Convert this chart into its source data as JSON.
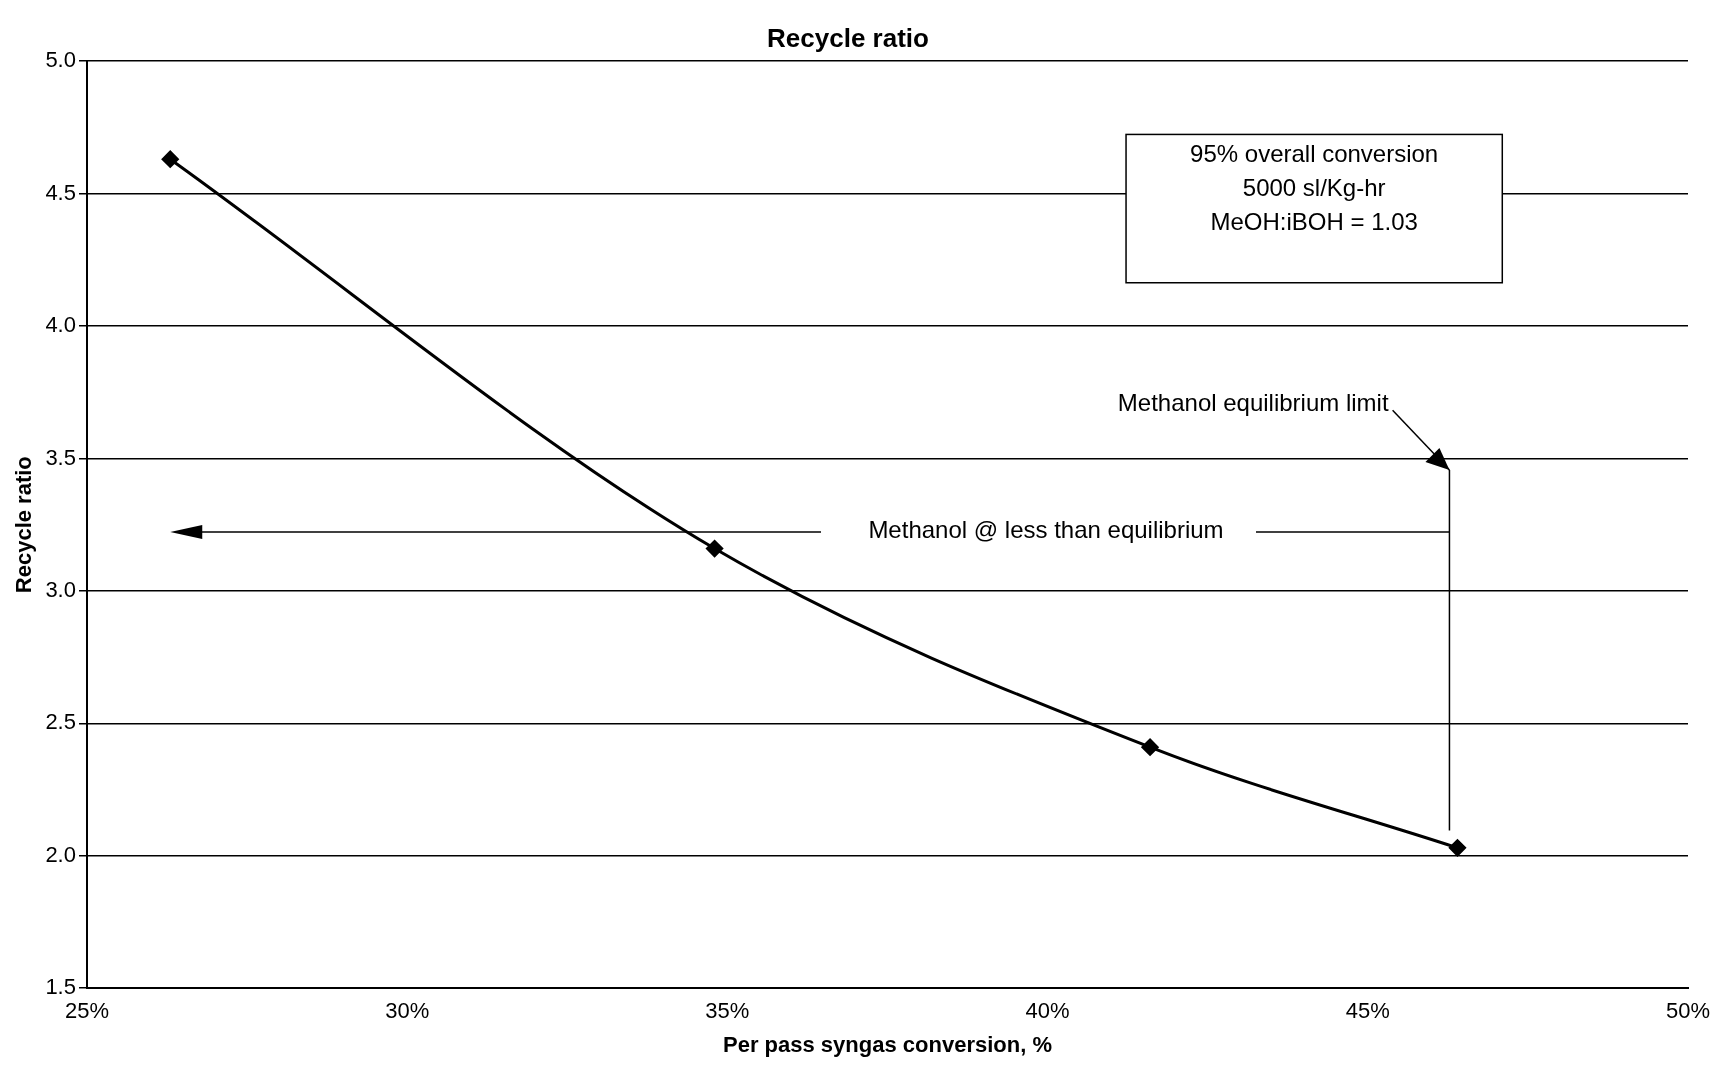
{
  "chart_data": {
    "type": "line",
    "title": "Recycle ratio",
    "xlabel": "Per pass syngas conversion, %",
    "ylabel": "Recycle ratio",
    "x": [
      26.3,
      34.8,
      41.6,
      46.4
    ],
    "series": [
      {
        "color": "#000000",
        "values": [
          4.63,
          3.16,
          2.41,
          2.03
        ]
      }
    ],
    "xlim": [
      25,
      50
    ],
    "xticks": [
      {
        "value": 25,
        "label": "25%"
      },
      {
        "value": 30,
        "label": "30%"
      },
      {
        "value": 35,
        "label": "35%"
      },
      {
        "value": 40,
        "label": "40%"
      },
      {
        "value": 45,
        "label": "45%"
      },
      {
        "value": 50,
        "label": "50%"
      }
    ],
    "ylim": [
      1.5,
      5
    ],
    "yticks": [
      1.5,
      {
        "value": 2,
        "label": "2.0"
      },
      2.5,
      {
        "value": 3,
        "label": "3.0"
      },
      3.5,
      {
        "value": 4,
        "label": "4.0"
      },
      4.5,
      {
        "value": 5,
        "label": "5.0"
      }
    ],
    "grid": "y",
    "legend": false,
    "marker": "diamond",
    "line_style": "solid",
    "annotations": [
      "95% overall conversion\n5000 sl/Kg-hr\nMeOH:iBOH = 1.03",
      "Methanol equilibrium limit",
      "Methanol @ less than equilibrium"
    ]
  }
}
